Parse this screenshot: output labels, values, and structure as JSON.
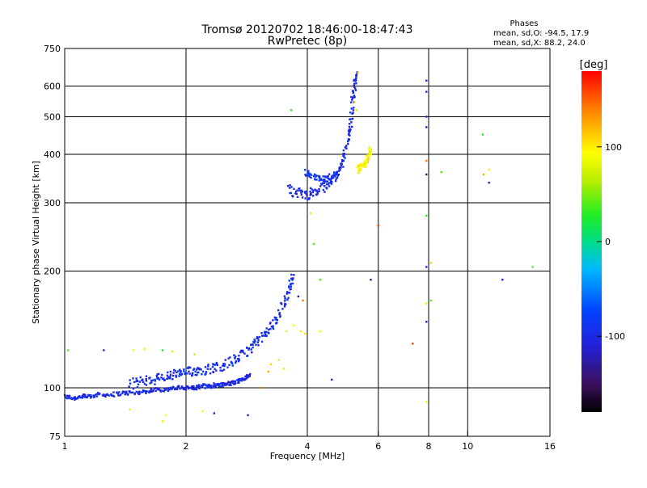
{
  "chart_data": {
    "type": "scatter",
    "title": "Tromsø 20120702 18:46:00-18:47:43",
    "subtitle": "RwPretec (8p)",
    "xlabel": "Frequency [MHz]",
    "ylabel": "Stationary phase Virtual Height [km]",
    "x_scale": "log",
    "y_scale": "log",
    "xlim": [
      1,
      16
    ],
    "ylim": [
      75,
      750
    ],
    "x_ticks": [
      1,
      2,
      4,
      6,
      8,
      10,
      16
    ],
    "x_tick_labels": [
      "1",
      "2",
      "4",
      "6",
      "8",
      "10",
      "16"
    ],
    "y_ticks": [
      75,
      100,
      200,
      300,
      400,
      500,
      600,
      750
    ],
    "y_tick_labels": [
      "75",
      "100",
      "200",
      "300",
      "400",
      "500",
      "600",
      "750"
    ],
    "grid": true,
    "legend": {
      "header": "Phases",
      "line1": "mean, sd,O: -94.5, 17.9",
      "line2": "mean, sd,X:  88.2, 24.0"
    },
    "colorbar": {
      "label": "[deg]",
      "range": [
        -180,
        180
      ],
      "ticks": [
        100,
        0,
        -100
      ],
      "tick_labels": [
        "100",
        "0",
        "-100"
      ]
    },
    "traces": [
      {
        "x": [
          1.0,
          1.05,
          1.1,
          1.15,
          1.2,
          1.3,
          1.4,
          1.5,
          1.6,
          1.7,
          1.8,
          1.9,
          2.0,
          2.1,
          2.2,
          2.3,
          2.4,
          2.5,
          2.6,
          2.7,
          2.8,
          2.9
        ],
        "y": [
          95,
          94,
          95,
          95,
          96,
          96,
          97,
          97,
          98,
          99,
          99,
          100,
          100,
          100,
          101,
          101,
          102,
          102,
          103,
          104,
          106,
          108
        ],
        "spread": 0.012,
        "phase": -100
      },
      {
        "x": [
          1.45,
          1.55,
          1.65,
          1.75,
          1.85,
          1.95,
          2.05,
          2.15,
          2.3,
          2.45,
          2.6,
          2.75,
          2.9,
          3.05,
          3.2,
          3.35,
          3.5,
          3.6,
          3.7
        ],
        "y": [
          102,
          104,
          105,
          106,
          108,
          109,
          110,
          111,
          112,
          114,
          117,
          121,
          127,
          133,
          140,
          150,
          165,
          180,
          195
        ],
        "spread": 0.03,
        "phase": -95
      },
      {
        "x": [
          3.6,
          3.8,
          4.0,
          4.2,
          4.4,
          4.6,
          4.8,
          4.95,
          5.05,
          5.15,
          5.2,
          5.25,
          5.3
        ],
        "y": [
          325,
          318,
          315,
          320,
          330,
          342,
          365,
          395,
          440,
          500,
          560,
          610,
          640
        ],
        "spread": 0.03,
        "phase": -100
      },
      {
        "x": [
          3.95,
          4.15,
          4.35,
          4.55,
          4.75
        ],
        "y": [
          360,
          350,
          345,
          350,
          358
        ],
        "spread": 0.015,
        "phase": -90
      },
      {
        "x": [
          5.35,
          5.45,
          5.55,
          5.65,
          5.75
        ],
        "y": [
          365,
          370,
          378,
          392,
          412
        ],
        "spread": 0.02,
        "phase": 95
      }
    ],
    "scatter": [
      {
        "x": 1.02,
        "y": 125,
        "phase": 40
      },
      {
        "x": 1.25,
        "y": 125,
        "phase": -100
      },
      {
        "x": 1.48,
        "y": 125,
        "phase": 95
      },
      {
        "x": 1.58,
        "y": 126,
        "phase": 100
      },
      {
        "x": 1.75,
        "y": 125,
        "phase": 20
      },
      {
        "x": 1.85,
        "y": 124,
        "phase": 80
      },
      {
        "x": 2.1,
        "y": 122,
        "phase": 70
      },
      {
        "x": 1.45,
        "y": 88,
        "phase": 100
      },
      {
        "x": 1.78,
        "y": 85,
        "phase": 95
      },
      {
        "x": 1.75,
        "y": 82,
        "phase": 100
      },
      {
        "x": 2.2,
        "y": 87,
        "phase": 90
      },
      {
        "x": 2.35,
        "y": 86,
        "phase": -110
      },
      {
        "x": 2.85,
        "y": 85,
        "phase": -120
      },
      {
        "x": 3.1,
        "y": 100,
        "phase": 140
      },
      {
        "x": 3.2,
        "y": 110,
        "phase": 120
      },
      {
        "x": 3.25,
        "y": 115,
        "phase": 110
      },
      {
        "x": 3.4,
        "y": 118,
        "phase": 100
      },
      {
        "x": 3.5,
        "y": 112,
        "phase": 105
      },
      {
        "x": 3.55,
        "y": 140,
        "phase": 100
      },
      {
        "x": 3.7,
        "y": 145,
        "phase": 95
      },
      {
        "x": 3.85,
        "y": 140,
        "phase": 100
      },
      {
        "x": 3.95,
        "y": 138,
        "phase": 105
      },
      {
        "x": 4.3,
        "y": 140,
        "phase": 95
      },
      {
        "x": 3.8,
        "y": 172,
        "phase": -130
      },
      {
        "x": 3.9,
        "y": 168,
        "phase": 140
      },
      {
        "x": 4.3,
        "y": 190,
        "phase": 40
      },
      {
        "x": 4.6,
        "y": 105,
        "phase": -100
      },
      {
        "x": 3.65,
        "y": 520,
        "phase": 30
      },
      {
        "x": 4.08,
        "y": 282,
        "phase": 105
      },
      {
        "x": 4.15,
        "y": 235,
        "phase": 40
      },
      {
        "x": 5.35,
        "y": 650,
        "phase": 110
      },
      {
        "x": 5.25,
        "y": 545,
        "phase": 100
      },
      {
        "x": 5.3,
        "y": 520,
        "phase": 110
      },
      {
        "x": 5.75,
        "y": 190,
        "phase": -130
      },
      {
        "x": 6.0,
        "y": 262,
        "phase": 160
      },
      {
        "x": 7.3,
        "y": 130,
        "phase": 160
      },
      {
        "x": 7.9,
        "y": 620,
        "phase": -110
      },
      {
        "x": 7.9,
        "y": 580,
        "phase": -110
      },
      {
        "x": 7.9,
        "y": 500,
        "phase": -110
      },
      {
        "x": 7.9,
        "y": 470,
        "phase": -120
      },
      {
        "x": 7.9,
        "y": 385,
        "phase": 140
      },
      {
        "x": 7.9,
        "y": 355,
        "phase": -130
      },
      {
        "x": 7.9,
        "y": 278,
        "phase": 30
      },
      {
        "x": 7.9,
        "y": 205,
        "phase": -100
      },
      {
        "x": 7.9,
        "y": 165,
        "phase": 80
      },
      {
        "x": 7.9,
        "y": 148,
        "phase": -110
      },
      {
        "x": 7.9,
        "y": 92,
        "phase": 100
      },
      {
        "x": 8.1,
        "y": 210,
        "phase": 110
      },
      {
        "x": 8.1,
        "y": 168,
        "phase": 40
      },
      {
        "x": 8.6,
        "y": 360,
        "phase": 40
      },
      {
        "x": 10.9,
        "y": 450,
        "phase": 30
      },
      {
        "x": 10.95,
        "y": 355,
        "phase": 120
      },
      {
        "x": 11.3,
        "y": 365,
        "phase": 100
      },
      {
        "x": 11.3,
        "y": 338,
        "phase": -110
      },
      {
        "x": 12.2,
        "y": 190,
        "phase": -110
      },
      {
        "x": 14.5,
        "y": 205,
        "phase": 40
      }
    ]
  }
}
